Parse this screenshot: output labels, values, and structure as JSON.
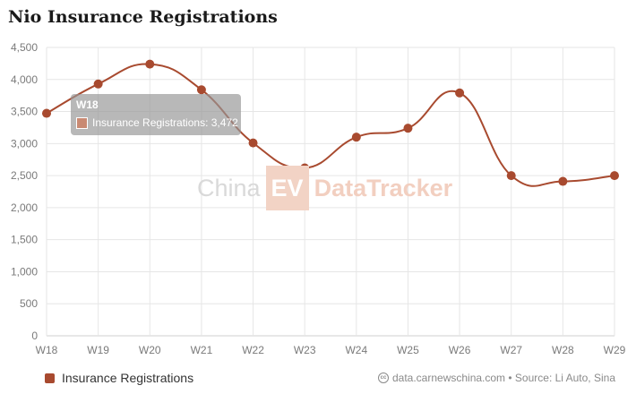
{
  "title": "Nio Insurance Registrations",
  "watermark": {
    "china": "China",
    "ev": "EV",
    "datatracker": "DataTracker"
  },
  "tooltip": {
    "title": "W18",
    "series_label": "Insurance Registrations",
    "value": "3,472"
  },
  "legend": {
    "label": "Insurance Registrations",
    "color": "#a84a2f"
  },
  "source": {
    "icon": "cc-icon",
    "text": "data.carnewschina.com • Source: Li Auto, Sina"
  },
  "colors": {
    "series": "#a84a2f",
    "grid": "#e6e6e6",
    "axis_text": "#7a7a7a"
  },
  "chart_data": {
    "type": "line",
    "smooth": true,
    "categories": [
      "W18",
      "W19",
      "W20",
      "W21",
      "W22",
      "W23",
      "W24",
      "W25",
      "W26",
      "W27",
      "W28",
      "W29"
    ],
    "series": [
      {
        "name": "Insurance Registrations",
        "color": "#a84a2f",
        "values": [
          3472,
          3930,
          4240,
          3840,
          3010,
          2620,
          3100,
          3240,
          3790,
          2500,
          2410,
          2500
        ]
      }
    ],
    "ylim": [
      0,
      4500
    ],
    "yticks": [
      0,
      500,
      1000,
      1500,
      2000,
      2500,
      3000,
      3500,
      4000,
      4500
    ],
    "ytick_labels": [
      "0",
      "500",
      "1,000",
      "1,500",
      "2,000",
      "2,500",
      "3,000",
      "3,500",
      "4,000",
      "4,500"
    ],
    "grid": true,
    "legend_position": "bottom-left"
  }
}
